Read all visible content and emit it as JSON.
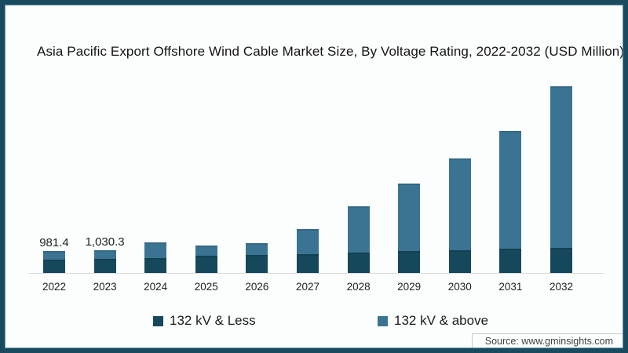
{
  "title": "Asia Pacific Export Offshore Wind Cable Market Size, By Voltage Rating, 2022-2032 (USD Million)",
  "source": "Source: www.gminsights.com",
  "colors": {
    "series_dark": "#16485C",
    "series_light": "#3A7492",
    "frame": "#1A4A5E",
    "frame_accent": "#6C9BB4",
    "axis_line": "#DCDCDC",
    "background": "#FCFEFE"
  },
  "legend": [
    {
      "label": "132 kV & Less",
      "color": "#16485C"
    },
    {
      "label": "132 kV & above",
      "color": "#3A7492"
    }
  ],
  "chart_data": {
    "type": "bar",
    "stacked": true,
    "title": "Asia Pacific Export Offshore Wind Cable Market Size, By Voltage Rating, 2022-2032 (USD Million)",
    "unit": "USD Million",
    "categories": [
      "2022",
      "2023",
      "2024",
      "2025",
      "2026",
      "2027",
      "2028",
      "2029",
      "2030",
      "2031",
      "2032"
    ],
    "series": [
      {
        "name": "132 kV & Less",
        "color": "#16485C",
        "values": [
          610,
          648,
          665,
          770,
          815,
          855,
          910,
          975,
          1030,
          1080,
          1115
        ]
      },
      {
        "name": "132 kV & above",
        "color": "#3A7492",
        "values": [
          371.4,
          382.3,
          690,
          455,
          505,
          1095,
          2070,
          3025,
          4090,
          5260,
          7235
        ]
      }
    ],
    "totals": [
      981.4,
      1030.3,
      1355,
      1225,
      1320,
      1950,
      2980,
      4000,
      5120,
      6340,
      8350
    ],
    "data_labels": [
      "981.4",
      "1,030.3",
      "",
      "",
      "",
      "",
      "",
      "",
      "",
      "",
      ""
    ],
    "ylim": [
      0,
      8500
    ],
    "grid": false,
    "legend_position": "bottom"
  }
}
